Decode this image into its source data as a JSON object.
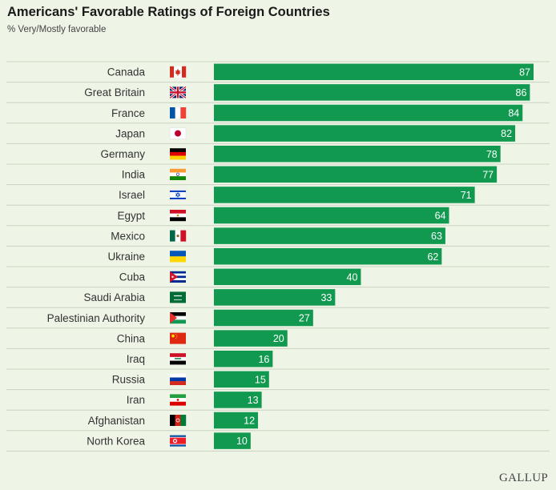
{
  "header": {
    "title": "Americans' Favorable Ratings of Foreign Countries",
    "subtitle": "% Very/Mostly favorable"
  },
  "brand": "GALLUP",
  "chart_data": {
    "type": "bar",
    "orientation": "horizontal",
    "title": "Americans' Favorable Ratings of Foreign Countries",
    "subtitle": "% Very/Mostly favorable",
    "categories": [
      "Canada",
      "Great Britain",
      "France",
      "Japan",
      "Germany",
      "India",
      "Israel",
      "Egypt",
      "Mexico",
      "Ukraine",
      "Cuba",
      "Saudi Arabia",
      "Palestinian Authority",
      "China",
      "Iraq",
      "Russia",
      "Iran",
      "Afghanistan",
      "North Korea"
    ],
    "values": [
      87,
      86,
      84,
      82,
      78,
      77,
      71,
      64,
      63,
      62,
      40,
      33,
      27,
      20,
      16,
      15,
      13,
      12,
      10
    ],
    "flags": [
      "canada-flag-icon",
      "great-britain-flag-icon",
      "france-flag-icon",
      "japan-flag-icon",
      "germany-flag-icon",
      "india-flag-icon",
      "israel-flag-icon",
      "egypt-flag-icon",
      "mexico-flag-icon",
      "ukraine-flag-icon",
      "cuba-flag-icon",
      "saudi-arabia-flag-icon",
      "palestine-flag-icon",
      "china-flag-icon",
      "iraq-flag-icon",
      "russia-flag-icon",
      "iran-flag-icon",
      "afghanistan-flag-icon",
      "north-korea-flag-icon"
    ],
    "xlim": [
      0,
      100
    ],
    "grid": false,
    "legend": "none",
    "data_labels": "inside-end",
    "colors": {
      "bar": "#119a4f",
      "background": "#eef4e6",
      "separator": "#c9d3c0",
      "label": "#333333",
      "value_text": "#ffffff"
    }
  }
}
